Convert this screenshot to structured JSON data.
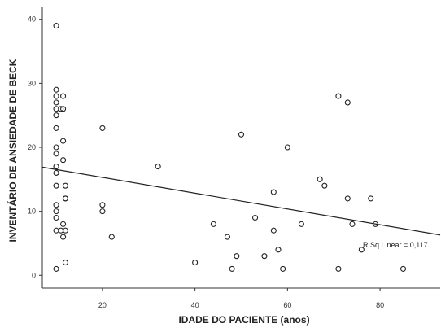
{
  "chart_data": {
    "type": "scatter",
    "xlabel": "IDADE DO PACIENTE (anos)",
    "ylabel": "INVENTÁRIO DE ANSIEDADE DE BECK",
    "xlim": [
      7,
      93
    ],
    "ylim": [
      -2,
      42
    ],
    "xticks": [
      20,
      40,
      60,
      80
    ],
    "yticks": [
      0,
      10,
      20,
      30,
      40
    ],
    "grid": false,
    "points": [
      {
        "x": 10,
        "y": 39
      },
      {
        "x": 10,
        "y": 29
      },
      {
        "x": 10,
        "y": 28
      },
      {
        "x": 10,
        "y": 27
      },
      {
        "x": 10,
        "y": 26
      },
      {
        "x": 10,
        "y": 25
      },
      {
        "x": 10,
        "y": 23
      },
      {
        "x": 10,
        "y": 20
      },
      {
        "x": 10,
        "y": 19
      },
      {
        "x": 10,
        "y": 17
      },
      {
        "x": 10,
        "y": 16
      },
      {
        "x": 10,
        "y": 14
      },
      {
        "x": 10,
        "y": 11
      },
      {
        "x": 10,
        "y": 10
      },
      {
        "x": 10,
        "y": 9
      },
      {
        "x": 10,
        "y": 7
      },
      {
        "x": 10,
        "y": 1
      },
      {
        "x": 11,
        "y": 26
      },
      {
        "x": 11,
        "y": 7
      },
      {
        "x": 11.5,
        "y": 28
      },
      {
        "x": 11.5,
        "y": 26
      },
      {
        "x": 11.5,
        "y": 21
      },
      {
        "x": 11.5,
        "y": 18
      },
      {
        "x": 11.5,
        "y": 8
      },
      {
        "x": 11.5,
        "y": 6
      },
      {
        "x": 12,
        "y": 14
      },
      {
        "x": 12,
        "y": 12
      },
      {
        "x": 12,
        "y": 12
      },
      {
        "x": 12,
        "y": 7
      },
      {
        "x": 12,
        "y": 2
      },
      {
        "x": 20,
        "y": 23
      },
      {
        "x": 20,
        "y": 11
      },
      {
        "x": 20,
        "y": 10
      },
      {
        "x": 22,
        "y": 6
      },
      {
        "x": 32,
        "y": 17
      },
      {
        "x": 40,
        "y": 2
      },
      {
        "x": 44,
        "y": 8
      },
      {
        "x": 47,
        "y": 6
      },
      {
        "x": 48,
        "y": 1
      },
      {
        "x": 49,
        "y": 3
      },
      {
        "x": 50,
        "y": 22
      },
      {
        "x": 53,
        "y": 9
      },
      {
        "x": 55,
        "y": 3
      },
      {
        "x": 57,
        "y": 13
      },
      {
        "x": 57,
        "y": 7
      },
      {
        "x": 58,
        "y": 4
      },
      {
        "x": 59,
        "y": 1
      },
      {
        "x": 60,
        "y": 20
      },
      {
        "x": 63,
        "y": 8
      },
      {
        "x": 67,
        "y": 15
      },
      {
        "x": 68,
        "y": 14
      },
      {
        "x": 71,
        "y": 28
      },
      {
        "x": 71,
        "y": 1
      },
      {
        "x": 73,
        "y": 27
      },
      {
        "x": 73,
        "y": 12
      },
      {
        "x": 74,
        "y": 8
      },
      {
        "x": 76,
        "y": 4
      },
      {
        "x": 78,
        "y": 12
      },
      {
        "x": 79,
        "y": 8
      },
      {
        "x": 85,
        "y": 1
      }
    ],
    "fit_line": {
      "x": [
        7,
        93
      ],
      "y": [
        16.9,
        6.3
      ]
    },
    "annotation": "R Sq Linear = 0,117",
    "marker_color": "#222222",
    "line_color": "#222222"
  }
}
